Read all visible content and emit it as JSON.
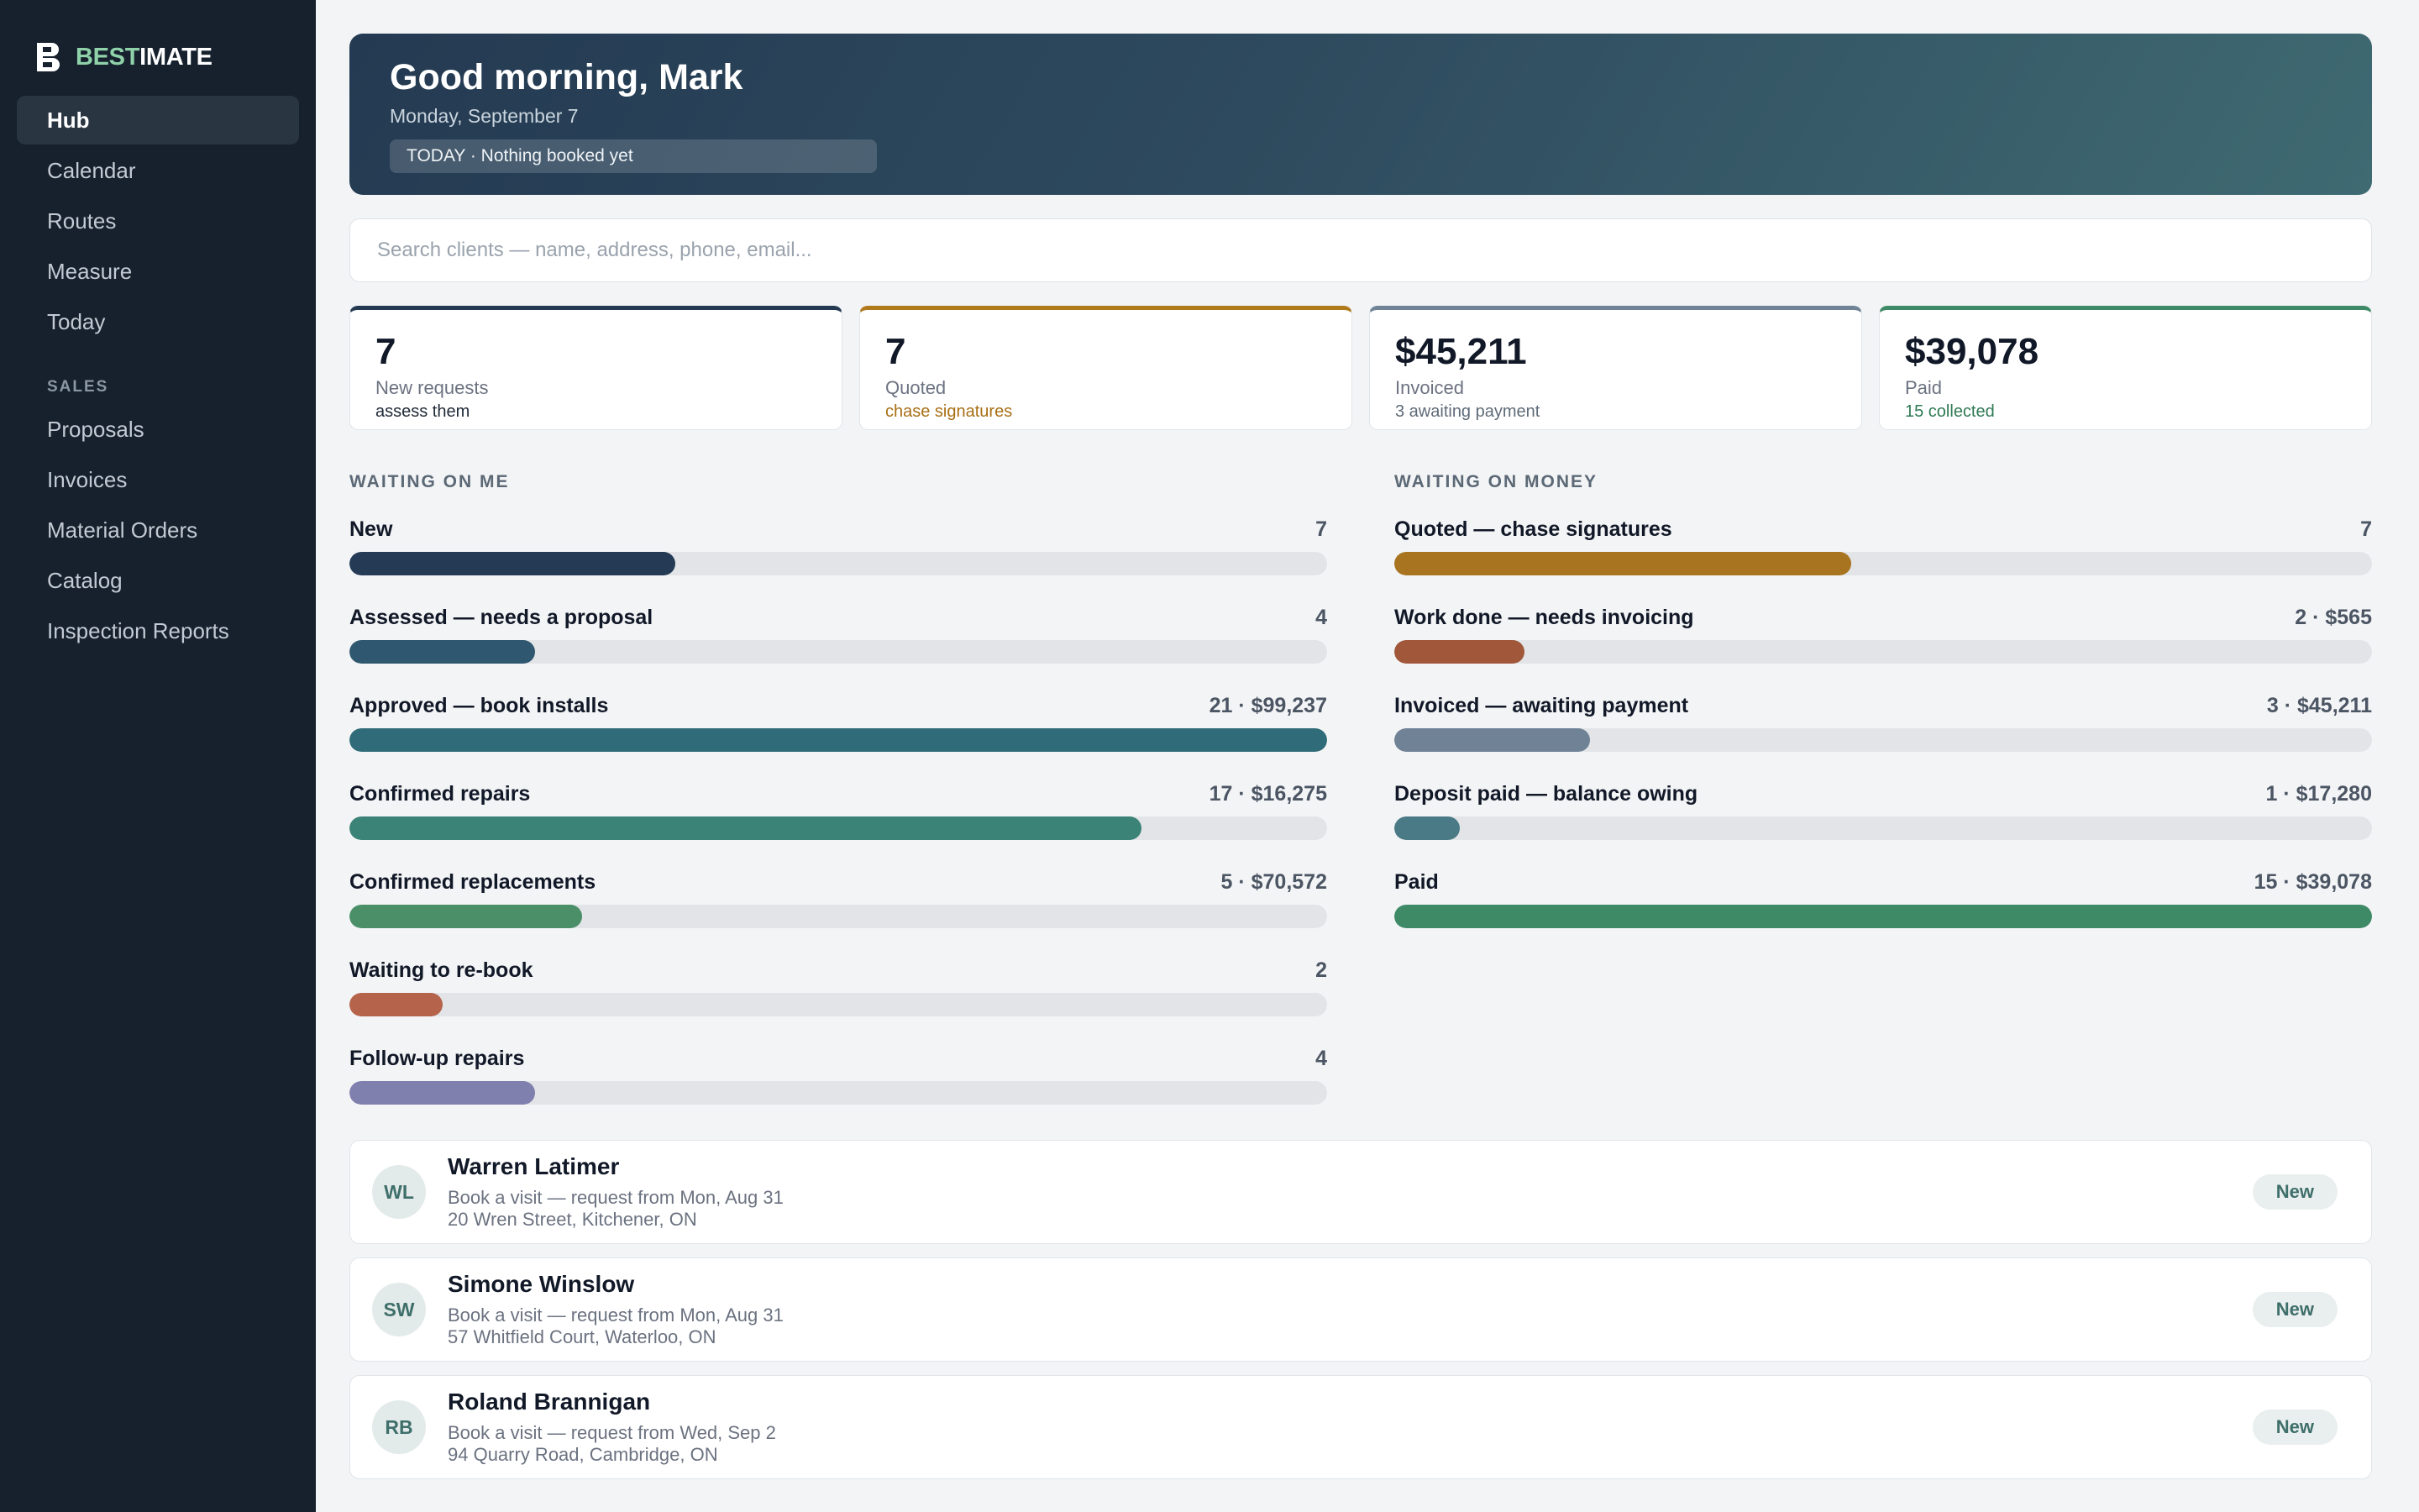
{
  "brand": {
    "part1": "BEST",
    "part2": "IMATE",
    "icon": "logo-b-icon"
  },
  "nav": {
    "items": [
      "Hub",
      "Calendar",
      "Routes",
      "Measure",
      "Today"
    ],
    "section_label": "SALES",
    "sales_items": [
      "Proposals",
      "Invoices",
      "Material Orders",
      "Catalog",
      "Inspection Reports"
    ]
  },
  "hero": {
    "title": "Good morning, Mark",
    "date": "Monday, September 7",
    "pill": "TODAY · Nothing booked yet"
  },
  "search": {
    "placeholder": "Search clients — name, address, phone, email..."
  },
  "stats": [
    {
      "value": "7",
      "label": "New requests",
      "sub": "assess them",
      "accent": "#243a52",
      "sub_color": "#1f2937"
    },
    {
      "value": "7",
      "label": "Quoted",
      "sub": "chase signatures",
      "accent": "#b07a1c",
      "sub_color": "#a86f14"
    },
    {
      "value": "$45,211",
      "label": "Invoiced",
      "sub": "3 awaiting payment",
      "accent": "#6f8296",
      "sub_color": "#5f6b78"
    },
    {
      "value": "$39,078",
      "label": "Paid",
      "sub": "15 collected",
      "accent": "#3e8a66",
      "sub_color": "#2f7a54"
    }
  ],
  "waiting_on_me": {
    "title": "WAITING ON ME",
    "rows": [
      {
        "label": "New",
        "value": "7",
        "fill": 0.333,
        "color": "#243a55"
      },
      {
        "label": "Assessed — needs a proposal",
        "value": "4",
        "fill": 0.19,
        "color": "#2f5870"
      },
      {
        "label": "Approved — book installs",
        "value": "21 · $99,237",
        "fill": 1.0,
        "color": "#2f6b78"
      },
      {
        "label": "Confirmed repairs",
        "value": "17 · $16,275",
        "fill": 0.81,
        "color": "#3b8277"
      },
      {
        "label": "Confirmed replacements",
        "value": "5 · $70,572",
        "fill": 0.238,
        "color": "#4b8f68"
      },
      {
        "label": "Waiting to re-book",
        "value": "2",
        "fill": 0.095,
        "color": "#b5634b"
      },
      {
        "label": "Follow-up repairs",
        "value": "4",
        "fill": 0.19,
        "color": "#8080ae"
      }
    ]
  },
  "waiting_on_money": {
    "title": "WAITING ON MONEY",
    "rows": [
      {
        "label": "Quoted — chase signatures",
        "value": "7",
        "fill": 0.467,
        "color": "#a87420"
      },
      {
        "label": "Work done — needs invoicing",
        "value": "2 · $565",
        "fill": 0.133,
        "color": "#a0573a"
      },
      {
        "label": "Invoiced — awaiting payment",
        "value": "3 · $45,211",
        "fill": 0.2,
        "color": "#6f8296"
      },
      {
        "label": "Deposit paid — balance owing",
        "value": "1 · $17,280",
        "fill": 0.067,
        "color": "#4a7a86"
      },
      {
        "label": "Paid",
        "value": "15 · $39,078",
        "fill": 1.0,
        "color": "#3e8a66"
      }
    ]
  },
  "clients": [
    {
      "initials": "WL",
      "name": "Warren Latimer",
      "line1": "Book a visit — request from Mon, Aug 31",
      "line2": "20 Wren Street, Kitchener, ON",
      "badge": "New"
    },
    {
      "initials": "SW",
      "name": "Simone Winslow",
      "line1": "Book a visit — request from Mon, Aug 31",
      "line2": "57 Whitfield Court, Waterloo, ON",
      "badge": "New"
    },
    {
      "initials": "RB",
      "name": "Roland Brannigan",
      "line1": "Book a visit — request from Wed, Sep 2",
      "line2": "94 Quarry Road, Cambridge, ON",
      "badge": "New"
    }
  ]
}
